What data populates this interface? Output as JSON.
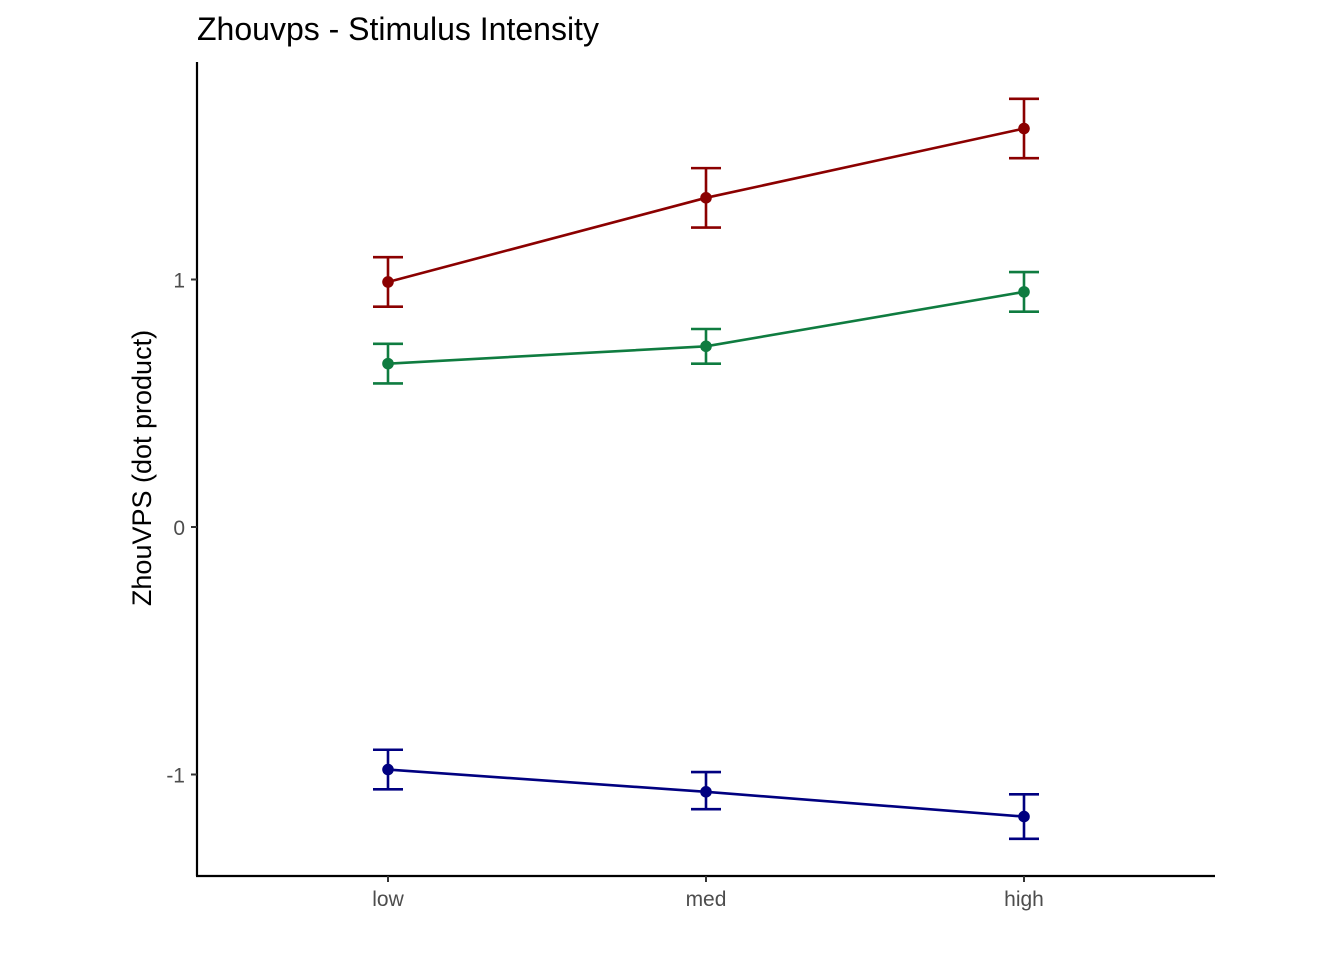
{
  "chart_data": {
    "type": "line",
    "title": "Zhouvps - Stimulus Intensity",
    "xlabel": "",
    "ylabel": "ZhouVPS  (dot product)",
    "categories": [
      "low",
      "med",
      "high"
    ],
    "y_ticks": [
      -1,
      0,
      1
    ],
    "y_tick_labels": [
      "-1",
      "0",
      "1"
    ],
    "ylim": [
      -1.4,
      1.9
    ],
    "grid": false,
    "legend": "none",
    "series": [
      {
        "color": "#8b0000",
        "values": [
          0.99,
          1.33,
          1.61
        ],
        "error_low": [
          0.89,
          1.21,
          1.49
        ],
        "error_high": [
          1.09,
          1.45,
          1.73
        ]
      },
      {
        "color": "#0f7c40",
        "values": [
          0.66,
          0.73,
          0.95
        ],
        "error_low": [
          0.58,
          0.66,
          0.87
        ],
        "error_high": [
          0.74,
          0.8,
          1.03
        ]
      },
      {
        "color": "#000080",
        "values": [
          -0.98,
          -1.07,
          -1.17
        ],
        "error_low": [
          -1.06,
          -1.14,
          -1.26
        ],
        "error_high": [
          -0.9,
          -0.99,
          -1.08
        ]
      }
    ]
  }
}
